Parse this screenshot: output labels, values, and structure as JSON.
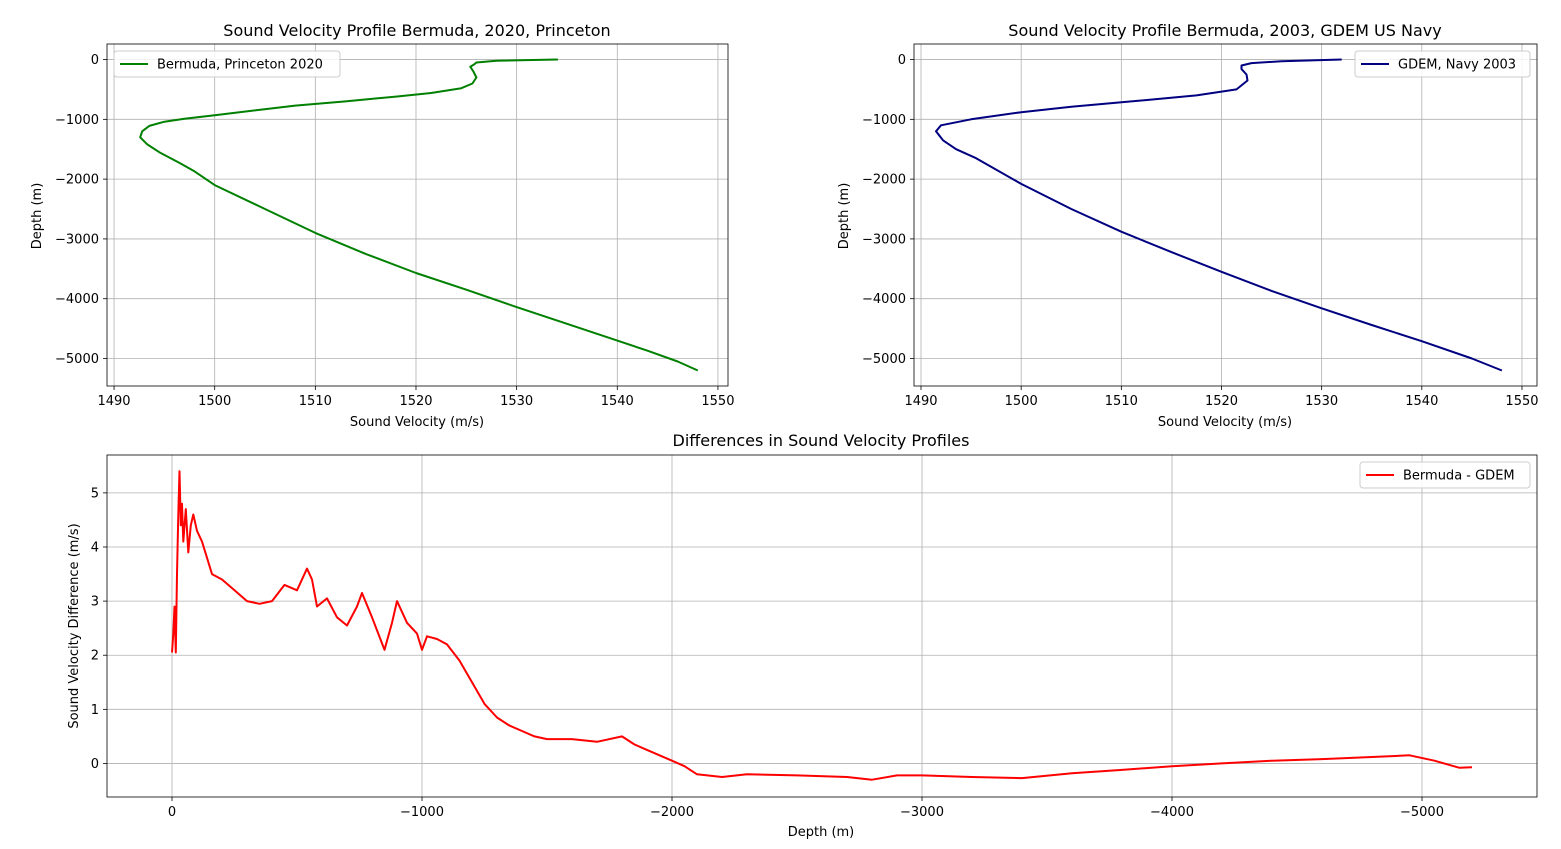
{
  "chart_data": [
    {
      "type": "line",
      "title": "Sound Velocity Profile Bermuda, 2020, Princeton",
      "xlabel": "Sound Velocity (m/s)",
      "ylabel": "Depth (m)",
      "xlim": [
        1489.3,
        1551.0
      ],
      "ylim": [
        -5460,
        260
      ],
      "xticks": [
        1490,
        1500,
        1510,
        1520,
        1530,
        1540,
        1550
      ],
      "yticks": [
        0,
        -1000,
        -2000,
        -3000,
        -4000,
        -5000
      ],
      "grid": true,
      "legend": "upper-left",
      "series": [
        {
          "name": "Bermuda, Princeton 2020",
          "color": "#008000",
          "points": [
            [
              1534.1,
              0
            ],
            [
              1528.0,
              -20
            ],
            [
              1526.0,
              -50
            ],
            [
              1525.8,
              -80
            ],
            [
              1525.4,
              -120
            ],
            [
              1525.7,
              -200
            ],
            [
              1526.0,
              -300
            ],
            [
              1525.6,
              -400
            ],
            [
              1524.5,
              -480
            ],
            [
              1521.5,
              -560
            ],
            [
              1518.0,
              -620
            ],
            [
              1513.0,
              -700
            ],
            [
              1508.0,
              -770
            ],
            [
              1504.0,
              -850
            ],
            [
              1500.0,
              -930
            ],
            [
              1497.0,
              -990
            ],
            [
              1495.0,
              -1040
            ],
            [
              1493.5,
              -1110
            ],
            [
              1492.8,
              -1200
            ],
            [
              1492.6,
              -1300
            ],
            [
              1493.3,
              -1420
            ],
            [
              1494.5,
              -1550
            ],
            [
              1496.4,
              -1720
            ],
            [
              1498.0,
              -1870
            ],
            [
              1500.0,
              -2100
            ],
            [
              1505.0,
              -2500
            ],
            [
              1510.0,
              -2900
            ],
            [
              1515.0,
              -3250
            ],
            [
              1520.0,
              -3570
            ],
            [
              1525.0,
              -3850
            ],
            [
              1530.0,
              -4140
            ],
            [
              1535.0,
              -4420
            ],
            [
              1540.0,
              -4700
            ],
            [
              1543.0,
              -4870
            ],
            [
              1546.0,
              -5050
            ],
            [
              1548.0,
              -5200
            ]
          ]
        }
      ]
    },
    {
      "type": "line",
      "title": "Sound Velocity Profile Bermuda, 2003, GDEM US Navy",
      "xlabel": "Sound Velocity (m/s)",
      "ylabel": "Depth (m)",
      "xlim": [
        1489.3,
        1551.5
      ],
      "ylim": [
        -5460,
        260
      ],
      "xticks": [
        1490,
        1500,
        1510,
        1520,
        1530,
        1540,
        1550
      ],
      "yticks": [
        0,
        -1000,
        -2000,
        -3000,
        -4000,
        -5000
      ],
      "grid": true,
      "legend": "upper-right",
      "series": [
        {
          "name": "GDEM, Navy 2003",
          "color": "#000080",
          "points": [
            [
              1532.0,
              0
            ],
            [
              1526.0,
              -30
            ],
            [
              1523.0,
              -60
            ],
            [
              1522.0,
              -100
            ],
            [
              1522.0,
              -160
            ],
            [
              1522.5,
              -250
            ],
            [
              1522.6,
              -350
            ],
            [
              1521.5,
              -500
            ],
            [
              1517.5,
              -600
            ],
            [
              1511.0,
              -700
            ],
            [
              1505.0,
              -790
            ],
            [
              1500.0,
              -880
            ],
            [
              1495.0,
              -1000
            ],
            [
              1492.0,
              -1100
            ],
            [
              1491.5,
              -1200
            ],
            [
              1492.2,
              -1350
            ],
            [
              1493.5,
              -1500
            ],
            [
              1495.5,
              -1650
            ],
            [
              1500.0,
              -2080
            ],
            [
              1505.0,
              -2500
            ],
            [
              1510.0,
              -2880
            ],
            [
              1515.0,
              -3220
            ],
            [
              1520.0,
              -3550
            ],
            [
              1525.0,
              -3870
            ],
            [
              1530.0,
              -4160
            ],
            [
              1535.0,
              -4440
            ],
            [
              1540.0,
              -4710
            ],
            [
              1545.0,
              -5000
            ],
            [
              1548.0,
              -5200
            ]
          ]
        }
      ]
    },
    {
      "type": "line",
      "title": "Differences in Sound Velocity Profiles",
      "xlabel": "Depth (m)",
      "ylabel": "Sound Velocity Difference (m/s)",
      "xlim": [
        260,
        -5460
      ],
      "ylim": [
        -0.62,
        5.7
      ],
      "xticks": [
        0,
        -1000,
        -2000,
        -3000,
        -4000,
        -5000
      ],
      "xticklabels": [
        "0",
        "−1000",
        "−2000",
        "−3000",
        "−4000",
        "−5000"
      ],
      "yticks": [
        0,
        1,
        2,
        3,
        4,
        5
      ],
      "grid": true,
      "legend": "upper-right",
      "series": [
        {
          "name": "Bermuda - GDEM",
          "color": "#ff0000",
          "points": [
            [
              0,
              2.05
            ],
            [
              -5,
              2.4
            ],
            [
              -10,
              2.9
            ],
            [
              -15,
              2.05
            ],
            [
              -20,
              3.5
            ],
            [
              -25,
              4.6
            ],
            [
              -30,
              5.4
            ],
            [
              -35,
              4.4
            ],
            [
              -40,
              4.8
            ],
            [
              -45,
              4.1
            ],
            [
              -55,
              4.7
            ],
            [
              -65,
              3.9
            ],
            [
              -75,
              4.4
            ],
            [
              -85,
              4.6
            ],
            [
              -100,
              4.3
            ],
            [
              -120,
              4.1
            ],
            [
              -140,
              3.8
            ],
            [
              -160,
              3.5
            ],
            [
              -200,
              3.4
            ],
            [
              -250,
              3.2
            ],
            [
              -300,
              3.0
            ],
            [
              -350,
              2.95
            ],
            [
              -400,
              3.0
            ],
            [
              -450,
              3.3
            ],
            [
              -500,
              3.2
            ],
            [
              -540,
              3.6
            ],
            [
              -560,
              3.4
            ],
            [
              -580,
              2.9
            ],
            [
              -620,
              3.05
            ],
            [
              -660,
              2.7
            ],
            [
              -700,
              2.55
            ],
            [
              -740,
              2.9
            ],
            [
              -760,
              3.15
            ],
            [
              -800,
              2.7
            ],
            [
              -850,
              2.1
            ],
            [
              -880,
              2.6
            ],
            [
              -900,
              3.0
            ],
            [
              -940,
              2.6
            ],
            [
              -980,
              2.4
            ],
            [
              -1000,
              2.1
            ],
            [
              -1020,
              2.35
            ],
            [
              -1060,
              2.3
            ],
            [
              -1100,
              2.2
            ],
            [
              -1150,
              1.9
            ],
            [
              -1200,
              1.5
            ],
            [
              -1250,
              1.1
            ],
            [
              -1300,
              0.85
            ],
            [
              -1350,
              0.7
            ],
            [
              -1400,
              0.6
            ],
            [
              -1450,
              0.5
            ],
            [
              -1500,
              0.45
            ],
            [
              -1600,
              0.45
            ],
            [
              -1700,
              0.4
            ],
            [
              -1800,
              0.5
            ],
            [
              -1850,
              0.35
            ],
            [
              -1900,
              0.25
            ],
            [
              -2000,
              0.05
            ],
            [
              -2050,
              -0.05
            ],
            [
              -2100,
              -0.2
            ],
            [
              -2200,
              -0.25
            ],
            [
              -2300,
              -0.2
            ],
            [
              -2500,
              -0.22
            ],
            [
              -2700,
              -0.25
            ],
            [
              -2800,
              -0.3
            ],
            [
              -2900,
              -0.22
            ],
            [
              -3000,
              -0.22
            ],
            [
              -3200,
              -0.25
            ],
            [
              -3400,
              -0.27
            ],
            [
              -3600,
              -0.18
            ],
            [
              -3800,
              -0.12
            ],
            [
              -4000,
              -0.05
            ],
            [
              -4200,
              0.0
            ],
            [
              -4400,
              0.05
            ],
            [
              -4600,
              0.08
            ],
            [
              -4800,
              0.12
            ],
            [
              -4950,
              0.15
            ],
            [
              -5050,
              0.05
            ],
            [
              -5150,
              -0.08
            ],
            [
              -5200,
              -0.07
            ]
          ]
        }
      ]
    }
  ]
}
